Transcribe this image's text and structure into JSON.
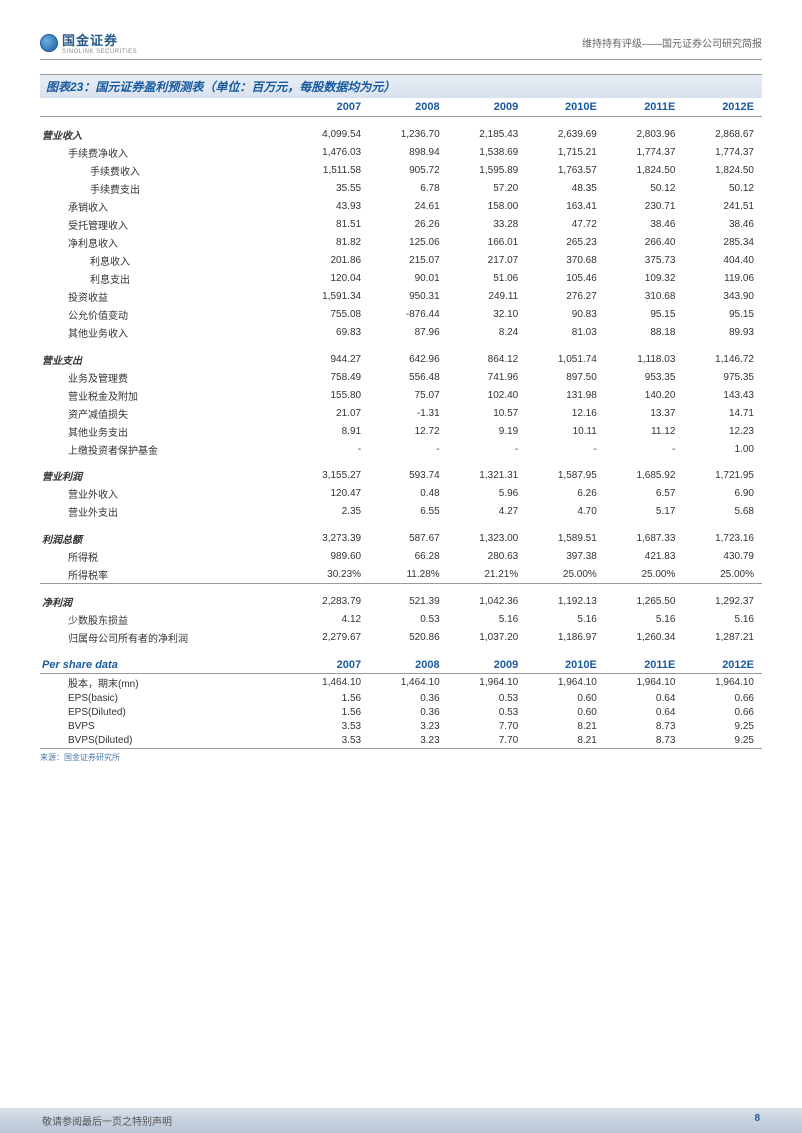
{
  "header": {
    "logo_cn": "国金证券",
    "logo_en": "SINOLINK SECURITIES",
    "right_text": "维持持有评级——国元证券公司研究简报"
  },
  "table_title": "图表23：国元证券盈利预测表（单位：百万元，每股数据均为元）",
  "years": [
    "2007",
    "2008",
    "2009",
    "2010E",
    "2011E",
    "2012E"
  ],
  "sections": [
    {
      "head": "营业收入",
      "head_values": [
        "4,099.54",
        "1,236.70",
        "2,185.43",
        "2,639.69",
        "2,803.96",
        "2,868.67"
      ],
      "rows": [
        {
          "label": "手续费净收入",
          "indent": 1,
          "values": [
            "1,476.03",
            "898.94",
            "1,538.69",
            "1,715.21",
            "1,774.37",
            "1,774.37"
          ]
        },
        {
          "label": "手续费收入",
          "indent": 2,
          "values": [
            "1,511.58",
            "905.72",
            "1,595.89",
            "1,763.57",
            "1,824.50",
            "1,824.50"
          ]
        },
        {
          "label": "手续费支出",
          "indent": 2,
          "values": [
            "35.55",
            "6.78",
            "57.20",
            "48.35",
            "50.12",
            "50.12"
          ]
        },
        {
          "label": "承销收入",
          "indent": 1,
          "values": [
            "43.93",
            "24.61",
            "158.00",
            "163.41",
            "230.71",
            "241.51"
          ]
        },
        {
          "label": "受托管理收入",
          "indent": 1,
          "values": [
            "81.51",
            "26.26",
            "33.28",
            "47.72",
            "38.46",
            "38.46"
          ]
        },
        {
          "label": "净利息收入",
          "indent": 1,
          "values": [
            "81.82",
            "125.06",
            "166.01",
            "265.23",
            "266.40",
            "285.34"
          ]
        },
        {
          "label": "利息收入",
          "indent": 2,
          "values": [
            "201.86",
            "215.07",
            "217.07",
            "370.68",
            "375.73",
            "404.40"
          ]
        },
        {
          "label": "利息支出",
          "indent": 2,
          "values": [
            "120.04",
            "90.01",
            "51.06",
            "105.46",
            "109.32",
            "119.06"
          ]
        },
        {
          "label": "投资收益",
          "indent": 1,
          "values": [
            "1,591.34",
            "950.31",
            "249.11",
            "276.27",
            "310.68",
            "343.90"
          ]
        },
        {
          "label": "公允价值变动",
          "indent": 1,
          "values": [
            "755.08",
            "-876.44",
            "32.10",
            "90.83",
            "95.15",
            "95.15"
          ]
        },
        {
          "label": "其他业务收入",
          "indent": 1,
          "values": [
            "69.83",
            "87.96",
            "8.24",
            "81.03",
            "88.18",
            "89.93"
          ]
        }
      ]
    },
    {
      "head": "营业支出",
      "head_values": [
        "944.27",
        "642.96",
        "864.12",
        "1,051.74",
        "1,118.03",
        "1,146.72"
      ],
      "rows": [
        {
          "label": "业务及管理费",
          "indent": 1,
          "values": [
            "758.49",
            "556.48",
            "741.96",
            "897.50",
            "953.35",
            "975.35"
          ]
        },
        {
          "label": "营业税金及附加",
          "indent": 1,
          "values": [
            "155.80",
            "75.07",
            "102.40",
            "131.98",
            "140.20",
            "143.43"
          ]
        },
        {
          "label": "资产减值损失",
          "indent": 1,
          "values": [
            "21.07",
            "-1.31",
            "10.57",
            "12.16",
            "13.37",
            "14.71"
          ]
        },
        {
          "label": "其他业务支出",
          "indent": 1,
          "values": [
            "8.91",
            "12.72",
            "9.19",
            "10.11",
            "11.12",
            "12.23"
          ]
        },
        {
          "label": "上缴投资者保护基金",
          "indent": 1,
          "values": [
            "-",
            "-",
            "-",
            "-",
            "-",
            "1.00"
          ]
        }
      ]
    },
    {
      "head": "营业利润",
      "head_values": [
        "3,155.27",
        "593.74",
        "1,321.31",
        "1,587.95",
        "1,685.92",
        "1,721.95"
      ],
      "rows": [
        {
          "label": "营业外收入",
          "indent": 1,
          "values": [
            "120.47",
            "0.48",
            "5.96",
            "6.26",
            "6.57",
            "6.90"
          ]
        },
        {
          "label": "营业外支出",
          "indent": 1,
          "values": [
            "2.35",
            "6.55",
            "4.27",
            "4.70",
            "5.17",
            "5.68"
          ]
        }
      ]
    },
    {
      "head": "利润总额",
      "head_values": [
        "3,273.39",
        "587.67",
        "1,323.00",
        "1,589.51",
        "1,687.33",
        "1,723.16"
      ],
      "rows": [
        {
          "label": "所得税",
          "indent": 1,
          "values": [
            "989.60",
            "66.28",
            "280.63",
            "397.38",
            "421.83",
            "430.79"
          ]
        },
        {
          "label": "所得税率",
          "indent": 1,
          "values": [
            "30.23%",
            "11.28%",
            "21.21%",
            "25.00%",
            "25.00%",
            "25.00%"
          ]
        }
      ]
    },
    {
      "head": "净利润",
      "head_values": [
        "2,283.79",
        "521.39",
        "1,042.36",
        "1,192.13",
        "1,265.50",
        "1,292.37"
      ],
      "border_top": true,
      "rows": [
        {
          "label": "少数股东损益",
          "indent": 1,
          "values": [
            "4.12",
            "0.53",
            "5.16",
            "5.16",
            "5.16",
            "5.16"
          ]
        },
        {
          "label": "归属母公司所有者的净利润",
          "indent": 1,
          "values": [
            "2,279.67",
            "520.86",
            "1,037.20",
            "1,186.97",
            "1,260.34",
            "1,287.21"
          ]
        }
      ]
    }
  ],
  "per_share": {
    "header": "Per share data",
    "years": [
      "2007",
      "2008",
      "2009",
      "2010E",
      "2011E",
      "2012E"
    ],
    "rows": [
      {
        "label": "股本，期末(mn)",
        "values": [
          "1,464.10",
          "1,464.10",
          "1,964.10",
          "1,964.10",
          "1,964.10",
          "1,964.10"
        ]
      },
      {
        "label": "EPS(basic)",
        "values": [
          "1.56",
          "0.36",
          "0.53",
          "0.60",
          "0.64",
          "0.66"
        ]
      },
      {
        "label": "EPS(Diluted)",
        "values": [
          "1.56",
          "0.36",
          "0.53",
          "0.60",
          "0.64",
          "0.66"
        ]
      },
      {
        "label": "BVPS",
        "values": [
          "3.53",
          "3.23",
          "7.70",
          "8.21",
          "8.73",
          "9.25"
        ]
      },
      {
        "label": "BVPS(Diluted)",
        "values": [
          "3.53",
          "3.23",
          "7.70",
          "8.21",
          "8.73",
          "9.25"
        ]
      }
    ]
  },
  "source": "来源：国金证券研究所",
  "footer": {
    "left": "敬请参阅最后一页之特别声明",
    "page": "8"
  },
  "colors": {
    "header_blue": "#1a5a9e",
    "title_bg_top": "#e8eef5",
    "title_bg_bottom": "#d8e2ee",
    "border": "#999999",
    "text": "#333333",
    "footer_bg_top": "#d8e0ea",
    "footer_bg_bottom": "#b8c5d5"
  }
}
